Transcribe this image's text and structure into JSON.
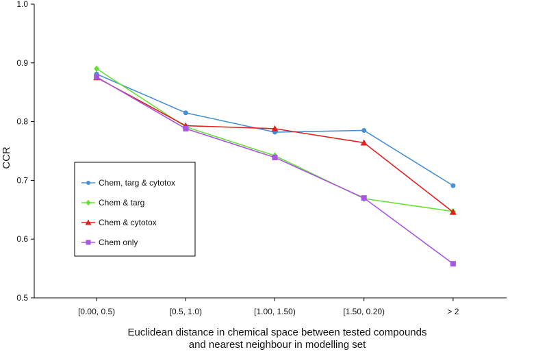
{
  "chart_data": {
    "type": "line",
    "categories": [
      "[0.00, 0.5)",
      "[0.5, 1.0)",
      "[1.00, 1.50)",
      "[1.50, 0.20)",
      "> 2"
    ],
    "ylabel": "CCR",
    "xlabel_lines": [
      "Euclidean distance in chemical space between tested compounds",
      "and nearest neighbour in modelling set"
    ],
    "ylim": [
      0.5,
      1.0
    ],
    "yticks": [
      "0.5",
      "0.6",
      "0.7",
      "0.8",
      "0.9",
      "1.0"
    ],
    "grid": false,
    "legend_position": "left",
    "series": [
      {
        "name": "Chem, targ & cytotox",
        "color": "#4a90d0",
        "marker": "circle",
        "values": [
          0.881,
          0.815,
          0.782,
          0.785,
          0.691
        ]
      },
      {
        "name": "Chem & targ",
        "color": "#66e033",
        "marker": "diamond",
        "values": [
          0.89,
          0.791,
          0.742,
          0.669,
          0.647
        ]
      },
      {
        "name": "Chem & cytotox",
        "color": "#e02020",
        "marker": "triangle",
        "values": [
          0.875,
          0.793,
          0.788,
          0.764,
          0.646
        ]
      },
      {
        "name": "Chem only",
        "color": "#a855e0",
        "marker": "square",
        "values": [
          0.876,
          0.788,
          0.739,
          0.67,
          0.558
        ]
      }
    ]
  }
}
